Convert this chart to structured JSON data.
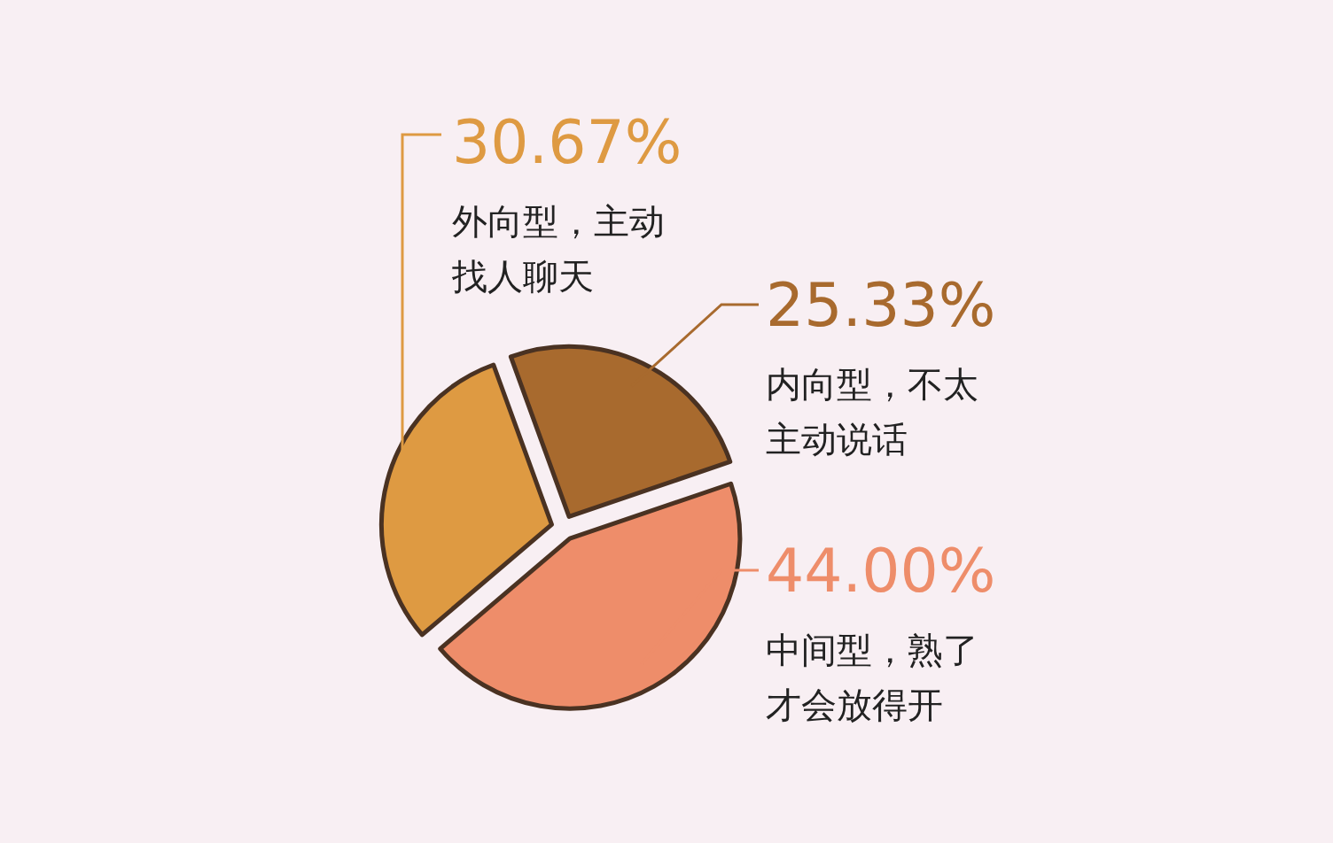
{
  "chart_data": {
    "type": "pie",
    "categories": [
      "内向型，不太主动说话",
      "中间型，熟了才会放得开",
      "外向型，主动找人聊天"
    ],
    "values": [
      25.33,
      44.0,
      30.67
    ],
    "colors": [
      "#a86a2e",
      "#ee8d6a",
      "#de9a42"
    ],
    "value_labels": [
      "25.33%",
      "44.00%",
      "30.67%"
    ]
  }
}
